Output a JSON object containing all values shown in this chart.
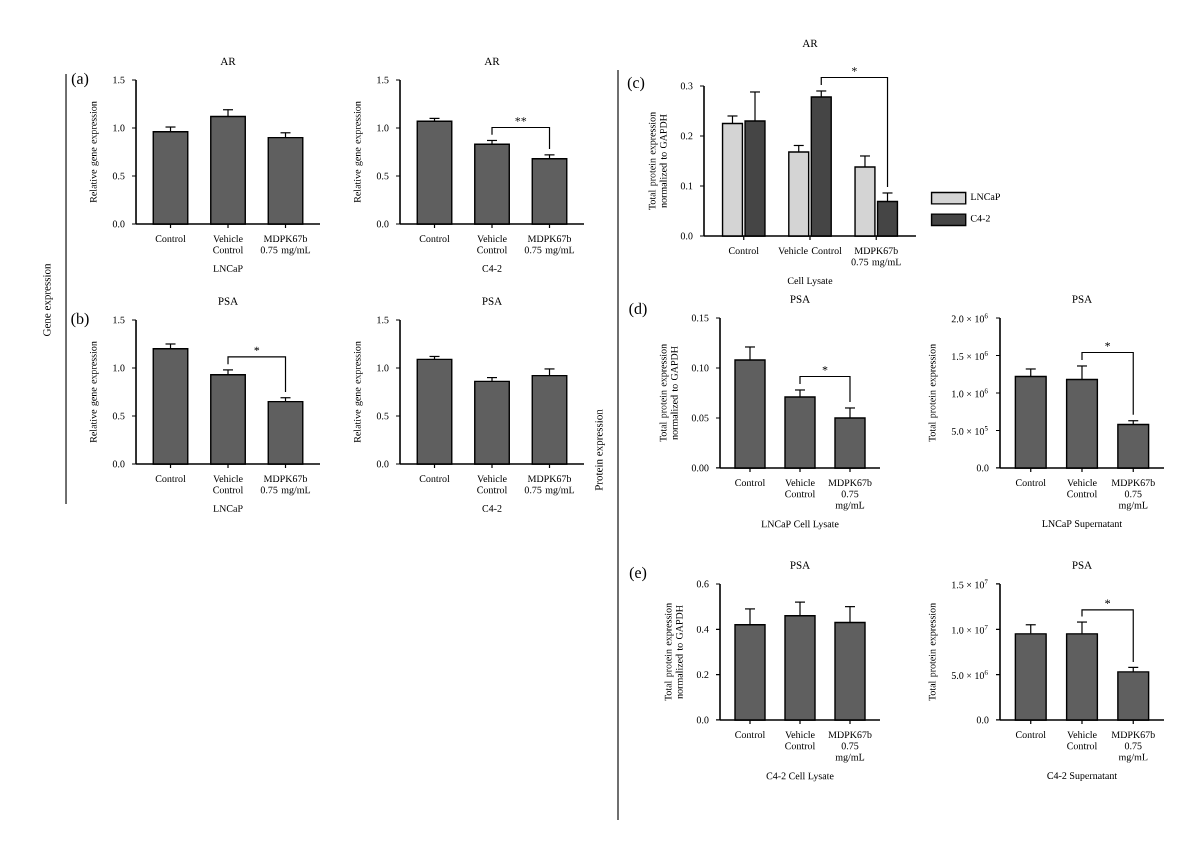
{
  "chart_data": [
    {
      "type": "bar",
      "title": "AR",
      "categories": [
        "Control",
        "Vehicle Control",
        "MDPK67b 0.75 mg/mL"
      ],
      "xlabel": "LNCaP",
      "ylabel": "Relative gene expression",
      "ylim": [
        0,
        1.5
      ],
      "yticks": [
        {
          "value": 0,
          "label": "0.0"
        },
        {
          "value": 0.5,
          "label": "0.5"
        },
        {
          "value": 1,
          "label": "1.0"
        },
        {
          "value": 1.5,
          "label": "1.5"
        }
      ],
      "color": "#5f5f5f",
      "values": [
        0.96,
        1.12,
        0.9
      ],
      "errors": [
        0.05,
        0.07,
        0.05
      ],
      "annotations": [
        "(a)",
        "Gene expression"
      ]
    },
    {
      "type": "bar",
      "title": "AR",
      "categories": [
        "Control",
        "Vehicle Control",
        "MDPK67b 0.75 mg/mL"
      ],
      "xlabel": "C4-2",
      "ylabel": "Relative gene expression",
      "ylim": [
        0,
        1.5
      ],
      "yticks": [
        {
          "value": 0,
          "label": "0.0"
        },
        {
          "value": 0.5,
          "label": "0.5"
        },
        {
          "value": 1,
          "label": "1.0"
        },
        {
          "value": 1.5,
          "label": "1.5"
        }
      ],
      "color": "#5f5f5f",
      "values": [
        1.07,
        0.83,
        0.68
      ],
      "errors": [
        0.03,
        0.04,
        0.04
      ],
      "annotations": [
        "**"
      ]
    },
    {
      "type": "bar",
      "title": "PSA",
      "categories": [
        "Control",
        "Vehicle Control",
        "MDPK67b 0.75 mg/mL"
      ],
      "xlabel": "LNCaP",
      "ylabel": "Relative gene expression",
      "ylim": [
        0,
        1.5
      ],
      "yticks": [
        {
          "value": 0,
          "label": "0.0"
        },
        {
          "value": 0.5,
          "label": "0.5"
        },
        {
          "value": 1,
          "label": "1.0"
        },
        {
          "value": 1.5,
          "label": "1.5"
        }
      ],
      "color": "#5f5f5f",
      "values": [
        1.2,
        0.93,
        0.65
      ],
      "errors": [
        0.05,
        0.05,
        0.04
      ],
      "annotations": [
        "(b)",
        "*"
      ]
    },
    {
      "type": "bar",
      "title": "PSA",
      "categories": [
        "Control",
        "Vehicle Control",
        "MDPK67b 0.75 mg/mL"
      ],
      "xlabel": "C4-2",
      "ylabel": "Relative gene expression",
      "ylim": [
        0,
        1.5
      ],
      "yticks": [
        {
          "value": 0,
          "label": "0.0"
        },
        {
          "value": 0.5,
          "label": "0.5"
        },
        {
          "value": 1,
          "label": "1.0"
        },
        {
          "value": 1.5,
          "label": "1.5"
        }
      ],
      "color": "#5f5f5f",
      "values": [
        1.09,
        0.86,
        0.92
      ],
      "errors": [
        0.03,
        0.04,
        0.07
      ]
    },
    {
      "type": "bar",
      "title": "AR",
      "categories": [
        "Control",
        "Vehicle Control",
        "MDPK67b 0.75 mg/mL"
      ],
      "xlabel": "Cell Lysate",
      "ylabel": "Total protein expression normalized to GAPDH",
      "ylim": [
        0,
        0.3
      ],
      "yticks": [
        {
          "value": 0,
          "label": "0.0"
        },
        {
          "value": 0.1,
          "label": "0.1"
        },
        {
          "value": 0.2,
          "label": "0.2"
        },
        {
          "value": 0.3,
          "label": "0.3"
        }
      ],
      "legend": "right",
      "series": [
        {
          "name": "LNCaP",
          "color": "#d4d4d4",
          "values": [
            0.225,
            0.168,
            0.138
          ],
          "errors": [
            0.015,
            0.013,
            0.022
          ]
        },
        {
          "name": "C4-2",
          "color": "#454545",
          "values": [
            0.23,
            0.278,
            0.069
          ],
          "errors": [
            0.058,
            0.012,
            0.017
          ]
        }
      ],
      "annotations": [
        "(c)",
        "Protein expression",
        "*"
      ]
    },
    {
      "type": "bar",
      "title": "PSA",
      "categories": [
        "Control",
        "Vehicle Control",
        "MDPK67b 0.75 mg/mL"
      ],
      "xlabel": "LNCaP Cell Lysate",
      "ylabel": "Total protein expression normalized to GAPDH",
      "ylim": [
        0,
        0.15
      ],
      "yticks": [
        {
          "value": 0,
          "label": "0.00"
        },
        0.05,
        {
          "value": 0.1,
          "label": "0.10"
        },
        0.15
      ],
      "color": "#5f5f5f",
      "values": [
        0.108,
        0.071,
        0.05
      ],
      "errors": [
        0.013,
        0.007,
        0.01
      ],
      "annotations": [
        "(d)",
        "*"
      ]
    },
    {
      "type": "bar",
      "title": "PSA",
      "categories": [
        "Control",
        "Vehicle Control",
        "MDPK67b 0.75 mg/mL"
      ],
      "xlabel": "LNCaP Supernatant",
      "ylabel": "Total protein expression",
      "ylim": [
        0,
        2000000
      ],
      "yticks": [
        {
          "value": 0,
          "label": "0.0"
        },
        {
          "value": 500000,
          "label": "5.0 × 10$^{5}$"
        },
        {
          "value": 1000000,
          "label": "1.0 × 10$^{6}$"
        },
        {
          "value": 1500000,
          "label": "1.5 × 10$^{6}$"
        },
        {
          "value": 2000000,
          "label": "2.0 × 10$^{6}$"
        }
      ],
      "color": "#5f5f5f",
      "values": [
        1220000,
        1180000,
        580000
      ],
      "errors": [
        100000,
        180000,
        50000
      ],
      "annotations": [
        "*"
      ]
    },
    {
      "type": "bar",
      "title": "PSA",
      "categories": [
        "Control",
        "Vehicle Control",
        "MDPK67b 0.75 mg/mL"
      ],
      "xlabel": "C4-2 Cell Lysate",
      "ylabel": "Total protein expression normalized to GAPDH",
      "ylim": [
        0,
        0.6
      ],
      "yticks": [
        {
          "value": 0,
          "label": "0.0"
        },
        0.2,
        0.4,
        0.6
      ],
      "color": "#5f5f5f",
      "values": [
        0.42,
        0.46,
        0.43
      ],
      "errors": [
        0.07,
        0.06,
        0.07
      ],
      "annotations": [
        "(e)"
      ]
    },
    {
      "type": "bar",
      "title": "PSA",
      "categories": [
        "Control",
        "Vehicle Control",
        "MDPK67b 0.75 mg/mL"
      ],
      "xlabel": "C4-2 Supernatant",
      "ylabel": "Total protein expression",
      "ylim": [
        0,
        15000000
      ],
      "yticks": [
        {
          "value": 0,
          "label": "0.0"
        },
        {
          "value": 5000000,
          "label": "5.0 × 10$^{6}$"
        },
        {
          "value": 10000000,
          "label": "1.0 × 10$^{7}$"
        },
        {
          "value": 15000000,
          "label": "1.5 × 10$^{7}$"
        }
      ],
      "color": "#5f5f5f",
      "values": [
        9500000,
        9500000,
        5300000
      ],
      "errors": [
        1000000,
        1300000,
        500000
      ],
      "annotations": [
        "*"
      ]
    }
  ]
}
